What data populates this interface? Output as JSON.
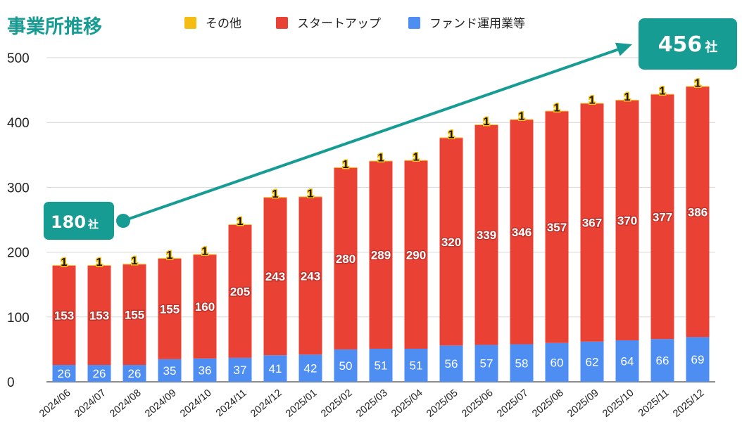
{
  "title": "事業所推移",
  "legend": [
    {
      "label": "その他",
      "color": "#f5bd13"
    },
    {
      "label": "スタートアップ",
      "color": "#e94235"
    },
    {
      "label": "ファンド運用業等",
      "color": "#4e8df2"
    }
  ],
  "callouts": {
    "start": {
      "number": "180",
      "unit": "社"
    },
    "end": {
      "number": "456",
      "unit": "社"
    },
    "color": "#179c94"
  },
  "chart_data": {
    "type": "bar",
    "stacked": true,
    "title": "事業所推移",
    "categories": [
      "2024/06",
      "2024/07",
      "2024/08",
      "2024/09",
      "2024/10",
      "2024/11",
      "2024/12",
      "2025/01",
      "2025/02",
      "2025/03",
      "2025/04",
      "2025/05",
      "2025/06",
      "2025/07",
      "2025/08",
      "2025/09",
      "2025/10",
      "2025/11",
      "2025/12"
    ],
    "series": [
      {
        "name": "ファンド運用業等",
        "color": "#4e8df2",
        "values": [
          26,
          26,
          26,
          35,
          36,
          37,
          41,
          42,
          50,
          51,
          51,
          56,
          57,
          58,
          60,
          62,
          64,
          66,
          69
        ]
      },
      {
        "name": "スタートアップ",
        "color": "#e94235",
        "values": [
          153,
          153,
          155,
          155,
          160,
          205,
          243,
          243,
          280,
          289,
          290,
          320,
          339,
          346,
          357,
          367,
          370,
          377,
          386
        ]
      },
      {
        "name": "その他",
        "color": "#f5bd13",
        "values": [
          1,
          1,
          1,
          1,
          1,
          1,
          1,
          1,
          1,
          1,
          1,
          1,
          1,
          1,
          1,
          1,
          1,
          1,
          1
        ]
      }
    ],
    "ylim": [
      0,
      500
    ],
    "yticks": [
      0,
      100,
      200,
      300,
      400,
      500
    ],
    "grid": true,
    "legend_position": "top"
  }
}
